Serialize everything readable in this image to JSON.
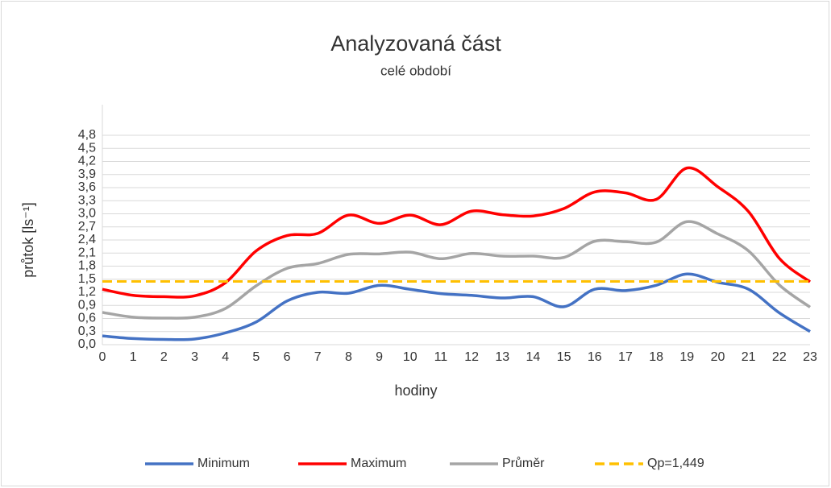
{
  "chart_data": {
    "type": "line",
    "title": "Analyzovaná část",
    "subtitle": "celé období",
    "x_label": "hodiny",
    "y_label": "průtok [ls⁻¹]",
    "categories": [
      "0",
      "1",
      "2",
      "3",
      "4",
      "5",
      "6",
      "7",
      "8",
      "9",
      "10",
      "11",
      "12",
      "13",
      "14",
      "15",
      "16",
      "17",
      "18",
      "19",
      "20",
      "21",
      "22",
      "23"
    ],
    "series": [
      {
        "name": "Minimum",
        "color": "#4472c4",
        "values": [
          0.2,
          0.14,
          0.12,
          0.13,
          0.27,
          0.52,
          1.0,
          1.2,
          1.18,
          1.36,
          1.27,
          1.17,
          1.13,
          1.07,
          1.1,
          0.87,
          1.27,
          1.24,
          1.36,
          1.62,
          1.43,
          1.27,
          0.73,
          0.3
        ]
      },
      {
        "name": "Maximum",
        "color": "#ff0000",
        "values": [
          1.27,
          1.13,
          1.1,
          1.12,
          1.42,
          2.15,
          2.5,
          2.55,
          2.97,
          2.78,
          2.97,
          2.75,
          3.06,
          2.98,
          2.95,
          3.12,
          3.5,
          3.48,
          3.33,
          4.05,
          3.62,
          3.05,
          1.98,
          1.44
        ]
      },
      {
        "name": "Průměr",
        "color": "#a5a5a5",
        "values": [
          0.74,
          0.63,
          0.61,
          0.63,
          0.83,
          1.35,
          1.75,
          1.86,
          2.07,
          2.08,
          2.12,
          1.97,
          2.09,
          2.03,
          2.03,
          2.0,
          2.37,
          2.36,
          2.35,
          2.82,
          2.54,
          2.15,
          1.37,
          0.86
        ]
      }
    ],
    "reference_line": {
      "name": "Qp=1,449",
      "value": 1.449,
      "color": "#ffc000"
    },
    "ylim": [
      0,
      4.8
    ],
    "yticks": [
      {
        "value": 0,
        "label": "0,0"
      },
      {
        "value": 0.3,
        "label": "0,3"
      },
      {
        "value": 0.6,
        "label": "0,6"
      },
      {
        "value": 0.9,
        "label": "0,9"
      },
      {
        "value": 1.2,
        "label": "1,2"
      },
      {
        "value": 1.5,
        "label": "1,5"
      },
      {
        "value": 1.8,
        "label": "1,8"
      },
      {
        "value": 2.1,
        "label": "2,1"
      },
      {
        "value": 2.4,
        "label": "2,4"
      },
      {
        "value": 2.7,
        "label": "2,7"
      },
      {
        "value": 3.0,
        "label": "3,0"
      },
      {
        "value": 3.3,
        "label": "3,3"
      },
      {
        "value": 3.6,
        "label": "3,6"
      },
      {
        "value": 3.9,
        "label": "3,9"
      },
      {
        "value": 4.2,
        "label": "4,2"
      },
      {
        "value": 4.5,
        "label": "4,5"
      },
      {
        "value": 4.8,
        "label": "4,8"
      }
    ],
    "grid": true,
    "legend": "bottom"
  }
}
